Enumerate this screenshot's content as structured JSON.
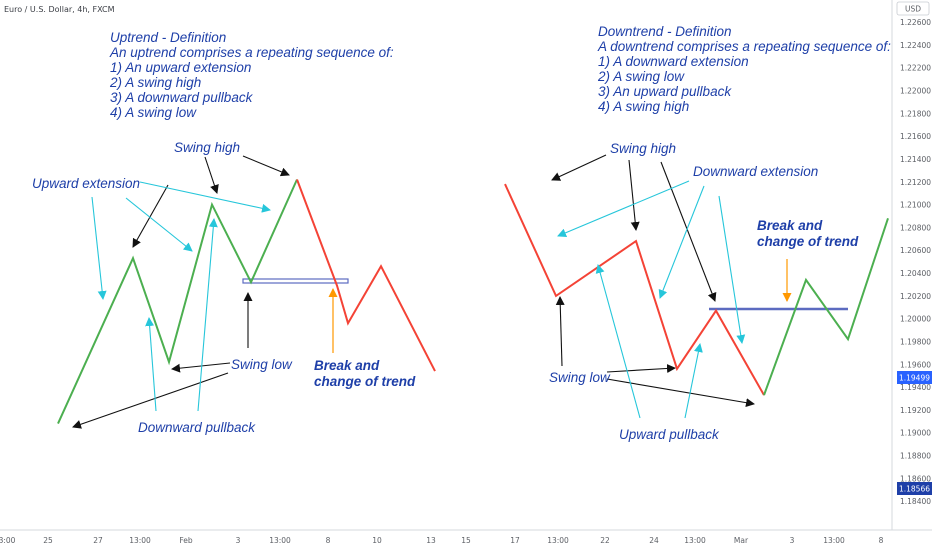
{
  "symbol": "Euro / U.S. Dollar, 4h, FXCM",
  "currency": "USD",
  "colors": {
    "up": "#4caf50",
    "down": "#f44336",
    "annot_black": "#111111",
    "annot_cyan": "#26c6da",
    "annot_orange": "#ff9800",
    "annot_text": "#1e3fa8",
    "level_line": "#5c6bc0",
    "price_tag_1": "#2962ff",
    "price_tag_2": "#1e3fa8"
  },
  "price_tags": [
    "1.19499",
    "1.18566"
  ],
  "chart_data": {
    "type": "line",
    "x_axis_labels": [
      "3:00",
      "25",
      "27",
      "13:00",
      "Feb",
      "3",
      "13:00",
      "8",
      "10",
      "13",
      "15",
      "17",
      "13:00",
      "22",
      "24",
      "13:00",
      "Mar",
      "3",
      "13:00",
      "8"
    ],
    "y_axis_labels": [
      "1.22600",
      "1.22400",
      "1.22200",
      "1.22000",
      "1.21800",
      "1.21600",
      "1.21400",
      "1.21200",
      "1.21000",
      "1.20800",
      "1.20600",
      "1.20400",
      "1.20200",
      "1.20000",
      "1.19800",
      "1.19600",
      "1.19400",
      "1.19200",
      "1.19000",
      "1.18800",
      "1.18600",
      "1.18400"
    ],
    "ylim": [
      1.1834,
      1.2275
    ],
    "series": [
      {
        "color": "up",
        "x": [
          "25",
          "27 13:00",
          "Jan 29",
          "Feb",
          "3",
          "4 13:00"
        ],
        "y": [
          1.1908,
          1.2053,
          1.1962,
          1.21,
          1.2032,
          1.2122
        ]
      },
      {
        "color": "down",
        "x": [
          "4 13:00",
          "8",
          "8 18:00",
          "10",
          "13"
        ],
        "y": [
          1.2122,
          1.2029,
          1.1996,
          1.2046,
          1.1954
        ]
      },
      {
        "color": "down",
        "x": [
          "16",
          "17 13:00",
          "23",
          "25 13:00",
          "Mar",
          "Mar 1 12:00"
        ],
        "y": [
          1.2118,
          1.202,
          1.2068,
          1.1956,
          1.2007,
          1.1933
        ]
      },
      {
        "color": "up",
        "x": [
          "Mar 1 12:00",
          "3 13:00",
          "5",
          "8"
        ],
        "y": [
          1.1933,
          1.2034,
          1.1982,
          1.2088
        ]
      }
    ]
  },
  "annotations": {
    "uptrend": {
      "title": "Uptrend - Definition",
      "intro": "An uptrend comprises a repeating sequence of:",
      "items": [
        "1) An upward extension",
        "2) A swing high",
        "3) A downward pullback",
        "4) A swing low"
      ]
    },
    "downtrend": {
      "title": "Downtrend - Definition",
      "intro": "A downtrend comprises a repeating sequence of:",
      "items": [
        "1) A downward extension",
        "2) A swing low",
        "3) An upward pullback",
        "4) A swing high"
      ]
    },
    "labels": {
      "swing_high_1": "Swing high",
      "upward_extension": "Upward  extension",
      "swing_low_1": "Swing low",
      "downward_pullback": "Downward pullback",
      "break_1_line1": "Break and",
      "break_1_line2": "change of trend",
      "swing_high_2": "Swing high",
      "downward_extension": "Downward extension",
      "break_2_line1": "Break and",
      "break_2_line2": "change of trend",
      "swing_low_2": "Swing low",
      "upward_pullback": "Upward pullback"
    }
  }
}
